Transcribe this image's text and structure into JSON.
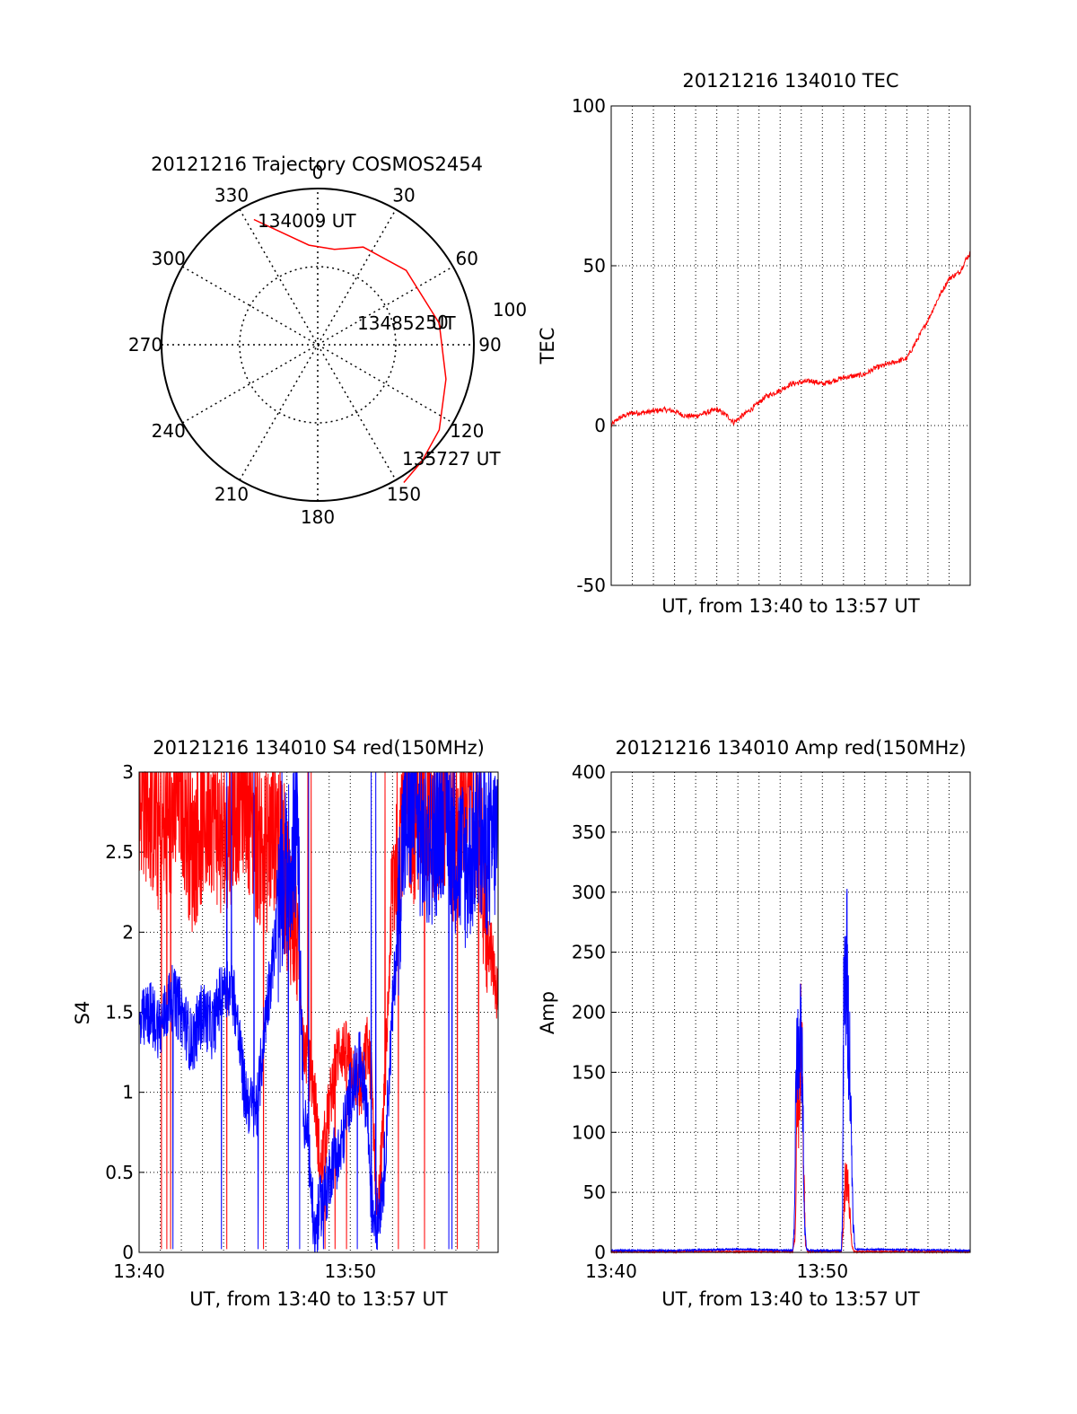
{
  "chart_data": [
    {
      "id": "trajectory",
      "type": "scatter",
      "subtype": "polar",
      "title": "20121216 Trajectory COSMOS2454",
      "angle_labels": [
        "0",
        "30",
        "60",
        "90",
        "120",
        "150",
        "180",
        "210",
        "240",
        "270",
        "300",
        "330"
      ],
      "radius_labels": [
        "50",
        "100"
      ],
      "grid": true,
      "series": [
        {
          "color": "#ff0000",
          "points": [
            [
              333,
              90
            ],
            [
              355,
              64
            ],
            [
              10,
              62
            ],
            [
              25,
              69
            ],
            [
              50,
              74
            ],
            [
              80,
              79
            ],
            [
              105,
              85
            ],
            [
              125,
              95
            ],
            [
              138,
              100
            ],
            [
              148,
              104
            ]
          ]
        }
      ],
      "annotations": [
        {
          "text": "134009 UT",
          "azimuth": 333,
          "radius": 90
        },
        {
          "text": "134852 UT",
          "azimuth": 80,
          "radius": 79
        },
        {
          "text": "135727 UT",
          "azimuth": 148,
          "radius": 104
        }
      ]
    },
    {
      "id": "tec",
      "type": "line",
      "title": "20121216 134010 TEC",
      "xlabel": "UT, from 13:40 to 13:57 UT",
      "ylabel": "TEC",
      "ylim": [
        -50,
        100
      ],
      "yticks": [
        "-50",
        "0",
        "50",
        "100"
      ],
      "x_range_minutes": [
        0,
        17
      ],
      "grid": true,
      "series": [
        {
          "color": "#ff0000",
          "x": [
            0,
            0.3,
            0.6,
            1.0,
            1.5,
            2.0,
            2.5,
            3.0,
            3.5,
            4.0,
            4.5,
            5.0,
            5.5,
            5.8,
            6.2,
            6.8,
            7.3,
            8.0,
            8.5,
            9.0,
            9.5,
            10.0,
            10.5,
            11.0,
            11.5,
            12.0,
            12.5,
            13.0,
            13.5,
            14.0,
            14.5,
            15.0,
            15.5,
            16.0,
            16.5,
            16.8,
            17.0
          ],
          "y": [
            0,
            2,
            3,
            4,
            4,
            4.5,
            5,
            4.5,
            3,
            3,
            4,
            5,
            3,
            1,
            3,
            6,
            9,
            11,
            13,
            13.5,
            14,
            13,
            14,
            15,
            15.5,
            16,
            18,
            19,
            20,
            21,
            27,
            33,
            40,
            46,
            48,
            52,
            54
          ]
        }
      ]
    },
    {
      "id": "s4",
      "type": "line",
      "title": "20121216 134010 S4 red(150MHz)",
      "xlabel": "UT, from 13:40 to 13:57 UT",
      "ylabel": "S4",
      "ylim": [
        0,
        3
      ],
      "yticks": [
        "0",
        "0.5",
        "1",
        "1.5",
        "2",
        "2.5",
        "3"
      ],
      "xticks": [
        "13:40",
        "13:50"
      ],
      "x_range_minutes": [
        0,
        17
      ],
      "grid": true,
      "series": [
        {
          "color": "#ff0000",
          "x": [
            0,
            0.5,
            1,
            1.5,
            2,
            2.5,
            3,
            3.5,
            4,
            4.5,
            5,
            5.5,
            6,
            6.5,
            7,
            7.5,
            7.8,
            8.0,
            8.3,
            8.6,
            8.9,
            9.2,
            9.5,
            10.0,
            10.5,
            10.8,
            11.0,
            11.3,
            11.6,
            12.0,
            12.5,
            13.0,
            13.5,
            14.0,
            14.5,
            15.0,
            15.5,
            16.0,
            16.5,
            17.0
          ],
          "y": [
            2.9,
            2.8,
            2.6,
            2.7,
            2.9,
            2.5,
            2.7,
            2.8,
            2.5,
            2.8,
            2.9,
            2.6,
            2.5,
            2.7,
            2.3,
            2.0,
            1.3,
            1.2,
            1.0,
            0.5,
            0.8,
            1.1,
            1.3,
            1.2,
            1.0,
            1.3,
            1.1,
            0.2,
            0.9,
            2.3,
            2.8,
            2.7,
            2.9,
            2.6,
            2.8,
            2.5,
            2.9,
            2.7,
            2.0,
            1.6
          ]
        },
        {
          "color": "#0000ff",
          "x": [
            0,
            0.5,
            1,
            1.5,
            2,
            2.5,
            3,
            3.5,
            4,
            4.5,
            5,
            5.3,
            5.6,
            6,
            6.5,
            7,
            7.5,
            7.8,
            8.0,
            8.3,
            8.6,
            8.9,
            9.2,
            9.5,
            10.0,
            10.5,
            10.8,
            11.0,
            11.3,
            11.6,
            12.0,
            12.5,
            13.0,
            13.5,
            14.0,
            14.5,
            15.0,
            15.5,
            16.0,
            16.5,
            17.0
          ],
          "y": [
            1.4,
            1.5,
            1.4,
            1.6,
            1.5,
            1.3,
            1.5,
            1.4,
            1.7,
            1.6,
            1.0,
            0.9,
            0.9,
            1.5,
            2.0,
            2.4,
            2.6,
            0.8,
            0.7,
            0.1,
            0.3,
            0.4,
            0.6,
            0.6,
            1.0,
            1.2,
            0.9,
            0.3,
            0.2,
            0.5,
            1.5,
            2.6,
            2.8,
            2.5,
            2.6,
            2.8,
            2.5,
            2.4,
            2.6,
            2.5,
            2.6
          ]
        }
      ]
    },
    {
      "id": "amp",
      "type": "line",
      "title": "20121216 134010 Amp red(150MHz)",
      "xlabel": "UT, from 13:40 to 13:57 UT",
      "ylabel": "Amp",
      "ylim": [
        0,
        400
      ],
      "yticks": [
        "0",
        "50",
        "100",
        "150",
        "200",
        "250",
        "300",
        "350",
        "400"
      ],
      "xticks": [
        "13:40",
        "13:50"
      ],
      "x_range_minutes": [
        0,
        17
      ],
      "grid": true,
      "series": [
        {
          "color": "#ff0000",
          "x": [
            0,
            8.6,
            8.72,
            8.8,
            8.9,
            9.0,
            9.1,
            9.2,
            9.3,
            9.4,
            10.9,
            11.0,
            11.1,
            11.2,
            11.3,
            11.4,
            11.5,
            11.6,
            13.9,
            14.0,
            14.1,
            17.0
          ],
          "y": [
            0,
            0,
            20,
            160,
            140,
            245,
            100,
            5,
            0,
            0,
            0,
            30,
            80,
            70,
            40,
            5,
            0,
            0,
            0,
            2,
            0,
            0
          ]
        },
        {
          "color": "#0000ff",
          "x": [
            0,
            3.0,
            6.0,
            8.6,
            8.68,
            8.75,
            8.85,
            8.95,
            9.05,
            9.15,
            9.25,
            9.35,
            10.9,
            10.95,
            11.02,
            11.08,
            11.15,
            11.22,
            11.3,
            11.38,
            11.46,
            11.55,
            17.0
          ],
          "y": [
            1,
            1,
            2,
            1,
            35,
            220,
            210,
            220,
            190,
            30,
            2,
            1,
            1,
            40,
            285,
            250,
            310,
            240,
            200,
            110,
            30,
            2,
            1
          ]
        }
      ]
    }
  ]
}
